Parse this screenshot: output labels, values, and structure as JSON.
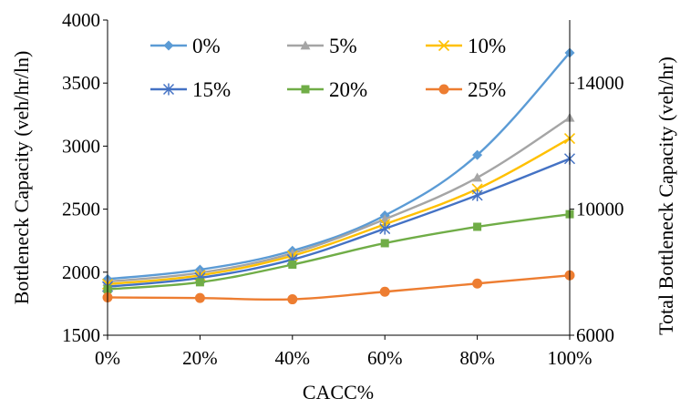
{
  "chart_data": {
    "type": "line",
    "title": "",
    "xlabel": "CACC%",
    "ylabel": "Bottleneck Capacity (veh/hr/ln)",
    "y2label": "Total Bottleneck Capacity (veh/hr)",
    "x": [
      "0%",
      "20%",
      "40%",
      "60%",
      "80%",
      "100%"
    ],
    "ylim": [
      1500,
      4000
    ],
    "yticks": [
      "1500",
      "2000",
      "2500",
      "3000",
      "3500",
      "4000"
    ],
    "y2lim": [
      6000,
      16000
    ],
    "y2ticks": [
      "6000",
      "10000",
      "14000"
    ],
    "grid": false,
    "legend": "top, inside plot, 3 columns",
    "series": [
      {
        "name": "0%",
        "color": "#5b9bd5",
        "marker": "diamond",
        "values": [
          1945,
          2020,
          2170,
          2450,
          2930,
          3740
        ]
      },
      {
        "name": "5%",
        "color": "#a5a5a5",
        "marker": "triangle",
        "values": [
          1925,
          1995,
          2150,
          2420,
          2750,
          3225
        ]
      },
      {
        "name": "10%",
        "color": "#ffc000",
        "marker": "x",
        "values": [
          1905,
          1975,
          2130,
          2380,
          2660,
          3060
        ]
      },
      {
        "name": "15%",
        "color": "#4472c4",
        "marker": "star",
        "values": [
          1885,
          1955,
          2100,
          2345,
          2610,
          2900
        ]
      },
      {
        "name": "20%",
        "color": "#70ad47",
        "marker": "square",
        "values": [
          1865,
          1920,
          2060,
          2230,
          2360,
          2460
        ]
      },
      {
        "name": "25%",
        "color": "#ed7d31",
        "marker": "circle",
        "values": [
          1800,
          1795,
          1785,
          1845,
          1910,
          1975
        ]
      }
    ]
  }
}
